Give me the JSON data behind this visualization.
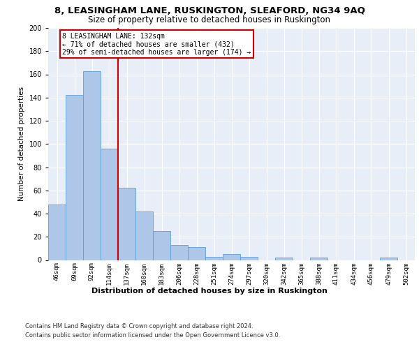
{
  "title1": "8, LEASINGHAM LANE, RUSKINGTON, SLEAFORD, NG34 9AQ",
  "title2": "Size of property relative to detached houses in Ruskington",
  "xlabel": "Distribution of detached houses by size in Ruskington",
  "ylabel": "Number of detached properties",
  "bar_color": "#aec6e8",
  "bar_edge_color": "#5a9fd4",
  "bins": [
    "46sqm",
    "69sqm",
    "92sqm",
    "114sqm",
    "137sqm",
    "160sqm",
    "183sqm",
    "206sqm",
    "228sqm",
    "251sqm",
    "274sqm",
    "297sqm",
    "320sqm",
    "342sqm",
    "365sqm",
    "388sqm",
    "411sqm",
    "434sqm",
    "456sqm",
    "479sqm",
    "502sqm"
  ],
  "values": [
    48,
    142,
    163,
    96,
    62,
    42,
    25,
    13,
    11,
    3,
    5,
    3,
    0,
    2,
    0,
    2,
    0,
    0,
    0,
    2,
    0
  ],
  "vline_index": 4,
  "vline_color": "#cc0000",
  "annotation_text": "8 LEASINGHAM LANE: 132sqm\n← 71% of detached houses are smaller (432)\n29% of semi-detached houses are larger (174) →",
  "annotation_box_color": "#ffffff",
  "annotation_box_edge_color": "#cc0000",
  "ylim": [
    0,
    200
  ],
  "yticks": [
    0,
    20,
    40,
    60,
    80,
    100,
    120,
    140,
    160,
    180,
    200
  ],
  "footer1": "Contains HM Land Registry data © Crown copyright and database right 2024.",
  "footer2": "Contains public sector information licensed under the Open Government Licence v3.0.",
  "bg_color": "#e8eef8",
  "grid_color": "#ffffff",
  "title1_fontsize": 9.5,
  "title2_fontsize": 8.5,
  "xlabel_fontsize": 8,
  "ylabel_fontsize": 7.5,
  "tick_fontsize": 6.5,
  "footer_fontsize": 6,
  "annotation_fontsize": 7
}
